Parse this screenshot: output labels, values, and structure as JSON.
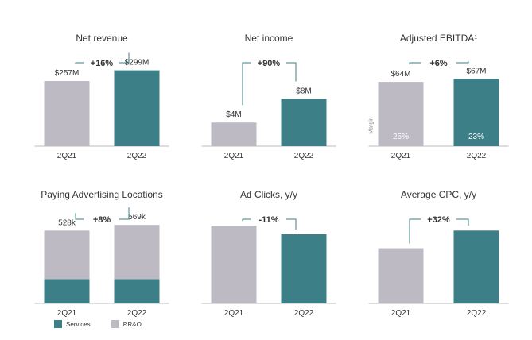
{
  "colors": {
    "gray": "#bdbac4",
    "teal": "#3c7f86",
    "axis": "#bbbbbb",
    "text": "#333333",
    "label_on_bar": "#ffffff"
  },
  "legend": {
    "services": "Services",
    "rro": "RR&O"
  },
  "chart_data": [
    {
      "type": "bar",
      "title": "Net revenue",
      "categories": [
        "2Q21",
        "2Q22"
      ],
      "values": [
        257,
        299
      ],
      "labels": [
        "$257M",
        "$299M"
      ],
      "change": "+16%",
      "ylim": [
        0,
        420
      ]
    },
    {
      "type": "bar",
      "title": "Net income",
      "categories": [
        "2Q21",
        "2Q22"
      ],
      "values": [
        4,
        8
      ],
      "labels": [
        "$4M",
        "$8M"
      ],
      "change": "+90%",
      "ylim": [
        0,
        18
      ]
    },
    {
      "type": "bar",
      "title": "Adjusted EBITDA",
      "title_sup": "1",
      "categories": [
        "2Q21",
        "2Q22"
      ],
      "values": [
        64,
        67
      ],
      "labels": [
        "$64M",
        "$67M"
      ],
      "change": "+6%",
      "ylim": [
        0,
        106
      ],
      "axis_note": "Margin",
      "inner_labels": [
        "25%",
        "23%"
      ]
    },
    {
      "type": "bar",
      "stacked": true,
      "title": "Paying Advertising Locations",
      "categories": [
        "2Q21",
        "2Q22"
      ],
      "series": [
        {
          "name": "Services",
          "values": [
            176,
            176
          ]
        },
        {
          "name": "RR&O",
          "values": [
            352,
            393
          ]
        }
      ],
      "totals": [
        528,
        569
      ],
      "labels": [
        "528k",
        "569k"
      ],
      "change": "+8%",
      "ylim": [
        0,
        760
      ]
    },
    {
      "type": "bar",
      "title": "Ad Clicks, y/y",
      "categories": [
        "2Q21",
        "2Q22"
      ],
      "values": [
        100,
        89
      ],
      "labels": [
        "",
        ""
      ],
      "change": "-11%",
      "ylim": [
        0,
        135
      ]
    },
    {
      "type": "bar",
      "title": "Average CPC, y/y",
      "categories": [
        "2Q21",
        "2Q22"
      ],
      "values": [
        100,
        132
      ],
      "labels": [
        "",
        ""
      ],
      "change": "+32%",
      "ylim": [
        0,
        190
      ]
    }
  ]
}
